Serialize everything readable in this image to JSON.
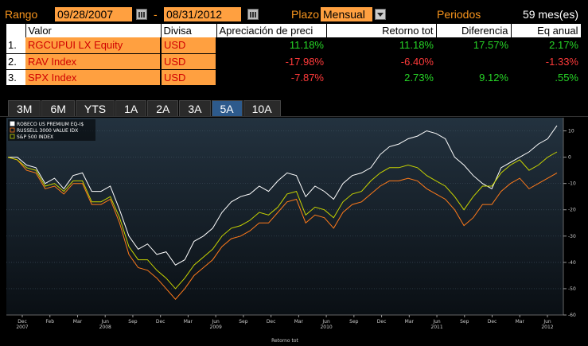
{
  "header": {
    "range_label": "Rango",
    "start_date": "09/28/2007",
    "dash": "-",
    "end_date": "08/31/2012",
    "plazo_label": "Plazo",
    "plazo_value": "Mensual",
    "periods_label": "Periodos",
    "periods_value": "59 mes(es)"
  },
  "table": {
    "columns": [
      "Valor",
      "Divisa",
      "Apreciación de preci",
      "Retorno tot",
      "Diferencia",
      "Eq anual"
    ],
    "rows": [
      {
        "idx": "1.",
        "valor": "RGCUPUI LX Equity",
        "divisa": "USD",
        "apreciacion": "11.18%",
        "retorno": "11.18%",
        "diferencia": "17.57%",
        "eq_anual": "2.17%"
      },
      {
        "idx": "2.",
        "valor": "RAV Index",
        "divisa": "USD",
        "apreciacion": "-17.98%",
        "retorno": "-6.40%",
        "diferencia": "",
        "eq_anual": "-1.33%"
      },
      {
        "idx": "3.",
        "valor": "SPX Index",
        "divisa": "USD",
        "apreciacion": "-7.87%",
        "retorno": "2.73%",
        "diferencia": "9.12%",
        "eq_anual": ".55%"
      }
    ]
  },
  "tabs": [
    "3M",
    "6M",
    "YTS",
    "1A",
    "2A",
    "3A",
    "5A",
    "10A"
  ],
  "active_tab": "5A",
  "colors": {
    "series_1": "#ffffff",
    "series_2": "#ff7a1a",
    "series_3": "#c8d400",
    "positive": "#27d627",
    "negative": "#ff3a3a",
    "field_bg": "#ffa040"
  },
  "chart_data": {
    "type": "line",
    "xlabel": "Retorno tot",
    "ylim": [
      -60,
      15
    ],
    "yticks": [
      10,
      0,
      -10,
      -20,
      -30,
      -40,
      -50,
      -60
    ],
    "x": [
      "2007-09",
      "2007-10",
      "2007-11",
      "2007-12",
      "2008-01",
      "2008-02",
      "2008-03",
      "2008-04",
      "2008-05",
      "2008-06",
      "2008-07",
      "2008-08",
      "2008-09",
      "2008-10",
      "2008-11",
      "2008-12",
      "2009-01",
      "2009-02",
      "2009-03",
      "2009-04",
      "2009-05",
      "2009-06",
      "2009-07",
      "2009-08",
      "2009-09",
      "2009-10",
      "2009-11",
      "2009-12",
      "2010-01",
      "2010-02",
      "2010-03",
      "2010-04",
      "2010-05",
      "2010-06",
      "2010-07",
      "2010-08",
      "2010-09",
      "2010-10",
      "2010-11",
      "2010-12",
      "2011-01",
      "2011-02",
      "2011-03",
      "2011-04",
      "2011-05",
      "2011-06",
      "2011-07",
      "2011-08",
      "2011-09",
      "2011-10",
      "2011-11",
      "2011-12",
      "2012-01",
      "2012-02",
      "2012-03",
      "2012-04",
      "2012-05",
      "2012-06",
      "2012-07",
      "2012-08"
    ],
    "x_tick_labels": [
      {
        "month": "Dec",
        "year": "2007"
      },
      {
        "month": "Feb",
        "year": ""
      },
      {
        "month": "Mar",
        "year": ""
      },
      {
        "month": "Jun",
        "year": "2008"
      },
      {
        "month": "Sep",
        "year": ""
      },
      {
        "month": "Dec",
        "year": ""
      },
      {
        "month": "Mar",
        "year": ""
      },
      {
        "month": "Jun",
        "year": "2009"
      },
      {
        "month": "Sep",
        "year": ""
      },
      {
        "month": "Dec",
        "year": ""
      },
      {
        "month": "Mar",
        "year": ""
      },
      {
        "month": "Jun",
        "year": "2010"
      },
      {
        "month": "Sep",
        "year": ""
      },
      {
        "month": "Dec",
        "year": ""
      },
      {
        "month": "Mar",
        "year": ""
      },
      {
        "month": "Jun",
        "year": "2011"
      },
      {
        "month": "Sep",
        "year": ""
      },
      {
        "month": "Dec",
        "year": ""
      },
      {
        "month": "Mar",
        "year": ""
      },
      {
        "month": "Jun",
        "year": "2012"
      }
    ],
    "series": [
      {
        "name": "ROBECO US PREMIUM EQ-I$",
        "values": [
          0,
          0,
          -3,
          -4,
          -10,
          -8,
          -12,
          -7,
          -6,
          -13,
          -13,
          -11,
          -20,
          -30,
          -35,
          -33,
          -37,
          -36,
          -41,
          -39,
          -32,
          -30,
          -27,
          -21,
          -17,
          -15,
          -14,
          -11,
          -13,
          -9,
          -6,
          -7,
          -15,
          -11,
          -13,
          -16,
          -10,
          -7,
          -6,
          -4,
          1,
          4,
          5,
          7,
          8,
          10,
          9,
          7,
          0,
          -3,
          -7,
          -10,
          -12,
          -4,
          -2,
          0,
          2,
          5,
          7,
          12
        ]
      },
      {
        "name": "RUSSELL 3000 VALUE IDX",
        "values": [
          0,
          -1,
          -5,
          -6,
          -12,
          -11,
          -14,
          -10,
          -10,
          -18,
          -18,
          -16,
          -25,
          -37,
          -42,
          -43,
          -46,
          -50,
          -54,
          -50,
          -45,
          -42,
          -39,
          -34,
          -31,
          -30,
          -28,
          -25,
          -25,
          -21,
          -17,
          -16,
          -25,
          -22,
          -23,
          -27,
          -21,
          -18,
          -17,
          -14,
          -11,
          -9,
          -9,
          -8,
          -9,
          -12,
          -14,
          -16,
          -20,
          -26,
          -23,
          -18,
          -18,
          -13,
          -10,
          -8,
          -12,
          -10,
          -8,
          -6
        ]
      },
      {
        "name": "S&P 500 INDEX",
        "values": [
          0,
          -1,
          -4,
          -5,
          -11,
          -10,
          -13,
          -9,
          -9,
          -17,
          -17,
          -15,
          -23,
          -34,
          -39,
          -39,
          -43,
          -46,
          -50,
          -46,
          -41,
          -38,
          -35,
          -30,
          -27,
          -26,
          -24,
          -21,
          -22,
          -19,
          -14,
          -13,
          -22,
          -19,
          -20,
          -23,
          -17,
          -14,
          -13,
          -9,
          -6,
          -4,
          -4,
          -3,
          -4,
          -7,
          -9,
          -11,
          -15,
          -20,
          -15,
          -11,
          -11,
          -6,
          -3,
          -1,
          -5,
          -3,
          0,
          2
        ]
      }
    ]
  }
}
